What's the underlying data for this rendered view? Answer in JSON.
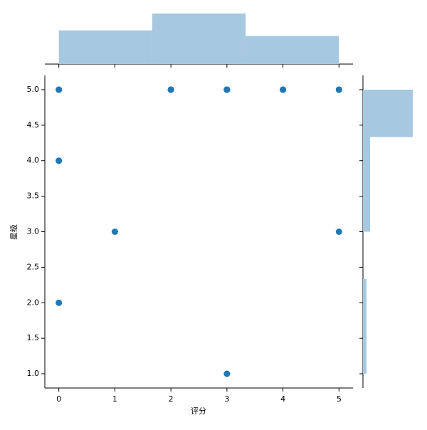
{
  "chart_data": {
    "type": "scatter",
    "x_label": "评分",
    "y_label": "星级",
    "x": [
      0,
      2,
      3,
      4,
      5,
      0,
      1,
      5,
      0,
      3,
      0,
      0,
      4,
      5,
      2,
      2,
      3,
      3,
      3,
      3
    ],
    "y": [
      5,
      5,
      5,
      5,
      5,
      4,
      3,
      3,
      2,
      1,
      4,
      5,
      5,
      5,
      5,
      5,
      5,
      5,
      5,
      5
    ],
    "color": "#1f77b4",
    "xlim": [
      -0.25,
      5.25
    ],
    "ylim": [
      0.8,
      5.2
    ],
    "xticks": [
      0,
      1,
      2,
      3,
      4,
      5
    ],
    "yticks": [
      {
        "value": 1,
        "label": "1.0"
      },
      {
        "value": 1.5,
        "label": "1.5"
      },
      {
        "value": 2,
        "label": "2.0"
      },
      {
        "value": 2.5,
        "label": "2.5"
      },
      {
        "value": 3,
        "label": "3.0"
      },
      {
        "value": 3.5,
        "label": "3.5"
      },
      {
        "value": 4,
        "label": "4.0"
      },
      {
        "value": 4.5,
        "label": "4.5"
      },
      {
        "value": 5,
        "label": "5.0"
      }
    ],
    "x_histogram": {
      "bins": [
        0,
        1.6667,
        3.3333,
        5
      ],
      "counts": [
        6,
        9,
        5
      ],
      "color": "#a6c8e0",
      "count_lim": [
        0,
        9
      ]
    },
    "y_histogram": {
      "bins": [
        1,
        1.6667,
        2.3333,
        3,
        3.6667,
        4.3333,
        5
      ],
      "counts": [
        1,
        1,
        0,
        2,
        2,
        14
      ],
      "color": "#a6c8e0",
      "count_lim": [
        0,
        14
      ]
    }
  }
}
